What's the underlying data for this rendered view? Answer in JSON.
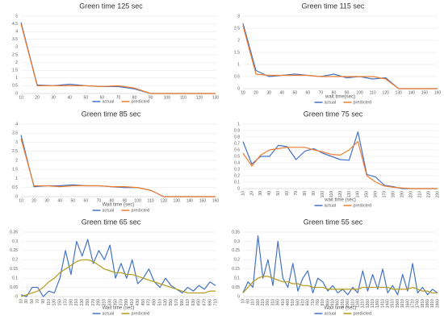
{
  "chart_data": [
    {
      "type": "line",
      "title": "Green time 125 sec",
      "categories": [
        "10",
        "20",
        "30",
        "40",
        "50",
        "60",
        "70",
        "80",
        "90",
        "100",
        "110",
        "120",
        "130"
      ],
      "series": [
        {
          "name": "actual",
          "color": "#4472c4",
          "values": [
            4.6,
            0.55,
            0.5,
            0.6,
            0.5,
            0.45,
            0.45,
            0.3,
            0,
            0,
            0,
            0,
            0
          ]
        },
        {
          "name": "predicted",
          "color": "#ed7d31",
          "values": [
            4.5,
            0.5,
            0.5,
            0.5,
            0.5,
            0.45,
            0.5,
            0.35,
            0,
            0,
            0,
            0,
            0
          ]
        }
      ],
      "ylim": [
        0,
        5
      ],
      "yticks": [
        0,
        0.5,
        1,
        1.5,
        2,
        2.5,
        3,
        3.5,
        4,
        4.5,
        5
      ],
      "grid": true,
      "legend": "bottom"
    },
    {
      "type": "line",
      "title": "Green time 115 sec",
      "x_label": "wait time(sec)",
      "categories": [
        "10",
        "20",
        "30",
        "40",
        "50",
        "60",
        "70",
        "80",
        "90",
        "100",
        "110",
        "120",
        "130",
        "140",
        "150",
        "160"
      ],
      "series": [
        {
          "name": "actual",
          "color": "#4472c4",
          "values": [
            2.7,
            0.75,
            0.5,
            0.55,
            0.6,
            0.55,
            0.5,
            0.6,
            0.45,
            0.5,
            0.4,
            0.45,
            0,
            0,
            0,
            0
          ]
        },
        {
          "name": "predicted",
          "color": "#ed7d31",
          "values": [
            2.6,
            0.6,
            0.55,
            0.55,
            0.55,
            0.55,
            0.5,
            0.5,
            0.5,
            0.5,
            0.5,
            0.4,
            0,
            0,
            0,
            0
          ]
        }
      ],
      "ylim": [
        0,
        3
      ],
      "yticks": [
        0,
        0.5,
        1,
        1.5,
        2,
        2.5,
        3
      ],
      "grid": true,
      "legend": "bottom"
    },
    {
      "type": "line",
      "title": "Green time 85 sec",
      "x_label": "Wait time (sec)",
      "categories": [
        "10",
        "20",
        "30",
        "40",
        "50",
        "60",
        "70",
        "80",
        "90",
        "100",
        "110",
        "120",
        "130",
        "140",
        "150",
        "160"
      ],
      "series": [
        {
          "name": "actual",
          "color": "#4472c4",
          "values": [
            3.4,
            0.55,
            0.6,
            0.6,
            0.65,
            0.6,
            0.6,
            0.55,
            0.5,
            0.5,
            0.35,
            0,
            0,
            0,
            0,
            0
          ]
        },
        {
          "name": "predicted",
          "color": "#ed7d31",
          "values": [
            3.2,
            0.6,
            0.6,
            0.55,
            0.6,
            0.6,
            0.6,
            0.55,
            0.55,
            0.5,
            0.35,
            0,
            0,
            0,
            0,
            0
          ]
        }
      ],
      "ylim": [
        0,
        4
      ],
      "yticks": [
        0,
        0.5,
        1,
        1.5,
        2,
        2.5,
        3,
        3.5,
        4
      ],
      "grid": true,
      "legend": "bottom"
    },
    {
      "type": "line",
      "title": "Green time 75 sec",
      "x_label": "wait time (sec)",
      "categories": [
        "10",
        "20",
        "30",
        "40",
        "50",
        "60",
        "70",
        "80",
        "90",
        "100",
        "110",
        "120",
        "130",
        "140",
        "150",
        "160",
        "170",
        "180",
        "190",
        "200",
        "210",
        "220",
        "230"
      ],
      "series": [
        {
          "name": "actual",
          "color": "#4472c4",
          "values": [
            0.73,
            0.38,
            0.5,
            0.5,
            0.67,
            0.65,
            0.45,
            0.58,
            0.62,
            0.55,
            0.5,
            0.45,
            0.44,
            0.88,
            0.22,
            0.18,
            0.05,
            0.03,
            0,
            0,
            0,
            0,
            0
          ]
        },
        {
          "name": "predicted",
          "color": "#ed7d31",
          "values": [
            0.55,
            0.35,
            0.52,
            0.6,
            0.62,
            0.64,
            0.64,
            0.64,
            0.6,
            0.57,
            0.53,
            0.52,
            0.6,
            0.73,
            0.2,
            0.1,
            0.04,
            0.02,
            0.01,
            0,
            0,
            0,
            0
          ]
        }
      ],
      "ylim": [
        0,
        1
      ],
      "yticks": [
        0,
        0.1,
        0.2,
        0.3,
        0.4,
        0.5,
        0.6,
        0.7,
        0.8,
        0.9,
        1
      ],
      "grid": true,
      "legend": "bottom"
    },
    {
      "type": "line",
      "title": "Green time 65 sec",
      "x_label": "Wait time (sec)",
      "categories": [
        "10",
        "30",
        "50",
        "70",
        "90",
        "110",
        "130",
        "150",
        "170",
        "190",
        "210",
        "230",
        "250",
        "270",
        "290",
        "310",
        "330",
        "350",
        "370",
        "390",
        "410",
        "430",
        "450",
        "470",
        "490",
        "510",
        "530",
        "550",
        "570",
        "590",
        "610",
        "630",
        "650",
        "670",
        "690",
        "710"
      ],
      "series": [
        {
          "name": "actual",
          "color": "#4472c4",
          "values": [
            0.01,
            0,
            0.05,
            0.05,
            0,
            0.03,
            0.02,
            0.1,
            0.25,
            0.12,
            0.3,
            0.22,
            0.31,
            0.18,
            0.25,
            0.2,
            0.28,
            0.1,
            0.18,
            0.1,
            0.2,
            0.07,
            0.1,
            0.15,
            0.08,
            0.05,
            0.1,
            0.06,
            0.04,
            0.02,
            0.05,
            0.03,
            0.06,
            0.04,
            0.08,
            0.06
          ]
        },
        {
          "name": "predicted",
          "color": "#b59b1c",
          "values": [
            0,
            0.01,
            0.02,
            0.03,
            0.05,
            0.08,
            0.1,
            0.13,
            0.15,
            0.17,
            0.19,
            0.2,
            0.2,
            0.19,
            0.17,
            0.15,
            0.14,
            0.13,
            0.13,
            0.12,
            0.12,
            0.11,
            0.1,
            0.09,
            0.08,
            0.07,
            0.06,
            0.05,
            0.04,
            0.03,
            0.02,
            0.02,
            0.02,
            0.02,
            0.03,
            0.03
          ]
        }
      ],
      "ylim": [
        0,
        0.35
      ],
      "yticks": [
        0,
        0.05,
        0.1,
        0.15,
        0.2,
        0.25,
        0.3,
        0.35
      ],
      "grid": true,
      "legend": "bottom"
    },
    {
      "type": "line",
      "title": "Green time 55 sec",
      "x_label": "Wait time (sec)",
      "categories": [
        "10",
        "60",
        "110",
        "160",
        "210",
        "260",
        "310",
        "360",
        "410",
        "460",
        "510",
        "560",
        "610",
        "660",
        "710",
        "760",
        "810",
        "860",
        "910",
        "960",
        "1010",
        "1060",
        "1110",
        "1160",
        "1210",
        "1260",
        "1310",
        "1360",
        "1410",
        "1460",
        "1510",
        "1560",
        "1610",
        "1660",
        "1710",
        "1760",
        "1810",
        "1860",
        "1910",
        "1960"
      ],
      "series": [
        {
          "name": "actual",
          "color": "#4472c4",
          "values": [
            0.02,
            0.08,
            0.05,
            0.33,
            0.1,
            0.2,
            0.06,
            0.3,
            0.1,
            0.05,
            0.18,
            0.03,
            0.1,
            0.14,
            0.02,
            0.1,
            0.08,
            0.03,
            0.06,
            0.02,
            0.04,
            0.01,
            0.05,
            0.02,
            0.14,
            0.03,
            0.12,
            0.04,
            0.15,
            0.02,
            0.06,
            0.01,
            0.12,
            0.03,
            0.18,
            0.02,
            0.05,
            0.01,
            0.04,
            0.02
          ]
        },
        {
          "name": "predicted",
          "color": "#b59b1c",
          "values": [
            0.02,
            0.05,
            0.08,
            0.1,
            0.11,
            0.11,
            0.1,
            0.09,
            0.08,
            0.08,
            0.07,
            0.07,
            0.06,
            0.06,
            0.05,
            0.05,
            0.05,
            0.04,
            0.04,
            0.04,
            0.04,
            0.04,
            0.04,
            0.04,
            0.05,
            0.05,
            0.05,
            0.05,
            0.05,
            0.05,
            0.04,
            0.04,
            0.04,
            0.04,
            0.05,
            0.04,
            0.03,
            0.03,
            0.02,
            0.02
          ]
        }
      ],
      "ylim": [
        0,
        0.35
      ],
      "yticks": [
        0,
        0.05,
        0.1,
        0.15,
        0.2,
        0.25,
        0.3,
        0.35
      ],
      "grid": true,
      "legend": "bottom"
    }
  ]
}
